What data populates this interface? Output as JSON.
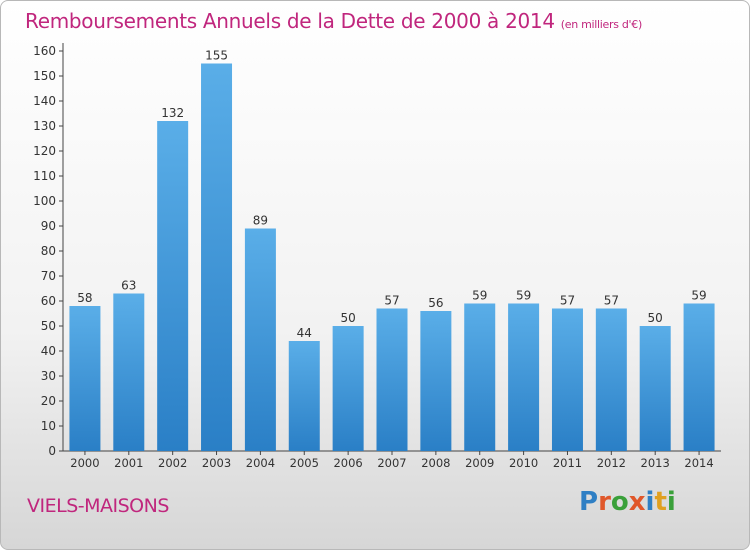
{
  "header": {
    "title": "Remboursements Annuels de la Dette de 2000 à 2014",
    "subtitle": "(en milliers d'€)"
  },
  "footer": {
    "place": "VIELS-MAISONS",
    "logo_text": "Proxiti"
  },
  "colors": {
    "accent": "#c0267d",
    "bar_top": "#5aaee8",
    "bar_bottom": "#2a7fc6",
    "logo_letters": [
      "#2f7fc4",
      "#e0572a",
      "#3aa03a",
      "#e0572a",
      "#2f7fc4",
      "#e0a020",
      "#3aa03a"
    ]
  },
  "chart_data": {
    "type": "bar",
    "categories": [
      "2000",
      "2001",
      "2002",
      "2003",
      "2004",
      "2005",
      "2006",
      "2007",
      "2008",
      "2009",
      "2010",
      "2011",
      "2012",
      "2013",
      "2014"
    ],
    "values": [
      58,
      63,
      132,
      155,
      89,
      44,
      50,
      57,
      56,
      59,
      59,
      57,
      57,
      50,
      59
    ],
    "yticks": [
      0,
      10,
      20,
      30,
      40,
      50,
      60,
      70,
      80,
      90,
      100,
      110,
      120,
      130,
      140,
      150,
      160
    ],
    "ylim": [
      0,
      160
    ],
    "grid": false,
    "data_labels": true
  }
}
